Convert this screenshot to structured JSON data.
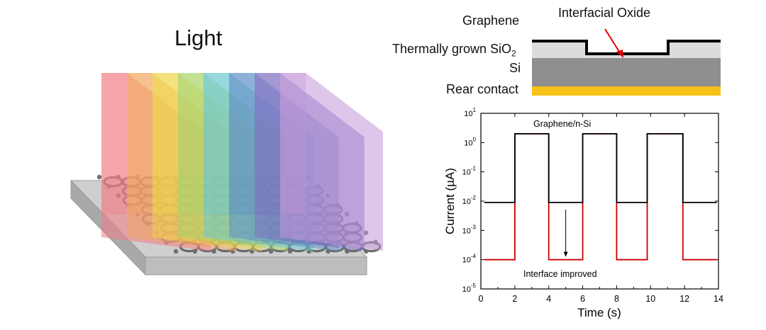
{
  "illustration": {
    "title": "Light",
    "beam_colors": [
      "#f07f86",
      "#f3a561",
      "#efd64a",
      "#a9d56b",
      "#6cc7cf",
      "#5f8fc7",
      "#7c6fc0",
      "#c295d8"
    ]
  },
  "cross_section": {
    "labels": {
      "graphene": "Graphene",
      "oxide": "Interfacial Oxide",
      "sio2_prefix": "Thermally grown SiO",
      "sio2_subscript": "2",
      "si": "Si",
      "rear": "Rear contact"
    },
    "colors": {
      "graphene": "#000000",
      "sio2": "#dcdcdc",
      "si": "#8f8f8f",
      "rear_contact": "#f7c11a",
      "arrow": "#e00000"
    }
  },
  "chart_data": {
    "type": "line",
    "xlabel": "Time (s)",
    "ylabel_prefix": "Current (",
    "ylabel_unit": "µA",
    "ylabel_suffix": ")",
    "xlim": [
      0,
      14
    ],
    "ylim_exp": [
      -5,
      1
    ],
    "y_scale": "log",
    "x_ticks": [
      "0",
      "2",
      "4",
      "6",
      "8",
      "10",
      "12",
      "14"
    ],
    "y_tick_exponents": [
      "-5",
      "-4",
      "-3",
      "-2",
      "-1",
      "0",
      "1"
    ],
    "series": [
      {
        "name": "Graphene/n-Si",
        "color": "#000000",
        "x": [
          0.2,
          2,
          2,
          4,
          4,
          6,
          6,
          8,
          8,
          9.8,
          9.8,
          11.9,
          11.9,
          13.9
        ],
        "y": [
          0.009,
          0.009,
          2.0,
          2.0,
          0.009,
          0.009,
          2.0,
          2.0,
          0.009,
          0.009,
          2.0,
          2.0,
          0.009,
          0.009
        ]
      },
      {
        "name": "Interface improved",
        "color": "#cc0000",
        "x": [
          0.2,
          2,
          2,
          4,
          4,
          6,
          6,
          8,
          8,
          9.8,
          9.8,
          11.9,
          11.9,
          13.9
        ],
        "y": [
          0.0001,
          0.0001,
          2.0,
          2.0,
          0.0001,
          0.0001,
          2.0,
          2.0,
          0.0001,
          0.0001,
          2.0,
          2.0,
          0.0001,
          0.0001
        ]
      }
    ],
    "annotation_arrow": {
      "x": 5,
      "from_y": 0.009,
      "to_y": 0.0001
    }
  }
}
